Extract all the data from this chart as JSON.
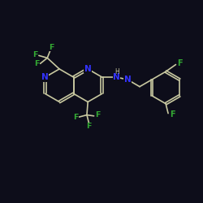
{
  "background_color": "#0d0d1a",
  "bond_color": "#c8c8a0",
  "nitrogen_color": "#3333ff",
  "fluorine_color": "#33aa33",
  "line_width": 1.2,
  "font_size_N": 7.5,
  "font_size_F": 7.0,
  "xlim": [
    0,
    10
  ],
  "ylim": [
    0,
    10
  ]
}
